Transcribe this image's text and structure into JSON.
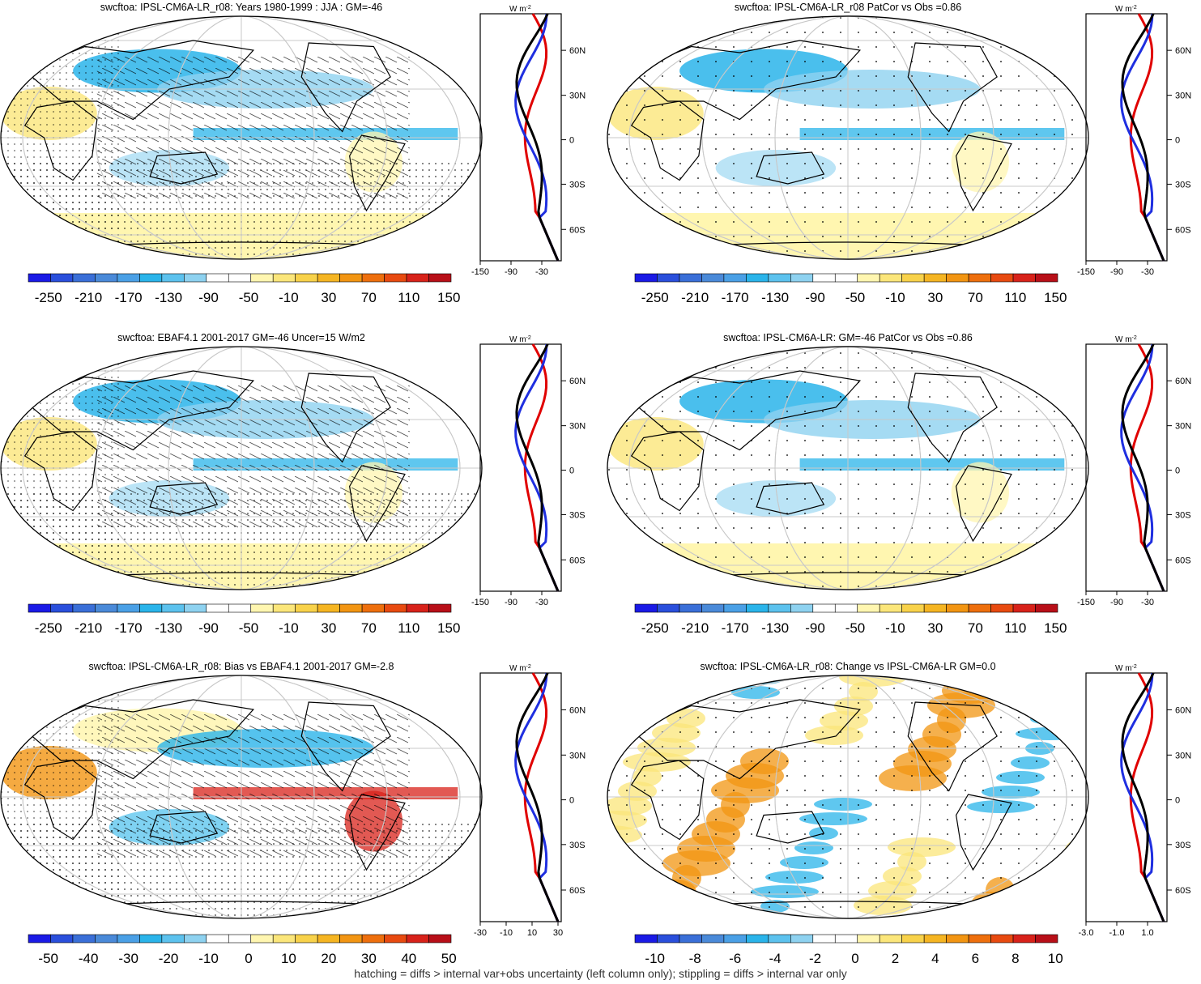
{
  "palettes": {
    "blue_red": [
      "#1a1ae6",
      "#2a4fdc",
      "#3a6fd8",
      "#4a8ad9",
      "#4aa0e6",
      "#2ab4ea",
      "#5cc2ee",
      "#8ed2f0",
      "#ffffff",
      "#ffffff",
      "#fff6b0",
      "#fbe67a",
      "#f8d24a",
      "#f5b522",
      "#f29512",
      "#ee6f0d",
      "#e84a10",
      "#d8221a",
      "#b80f18"
    ]
  },
  "footnote": "hatching = diffs > internal var+obs uncertainty (left column only); stippling = diffs > internal var only",
  "panels": [
    {
      "title": "swcftoa: IPSL-CM6A-LR_r08: Years 1980-1999 : JJA : GM=-46",
      "colorbar_labels": [
        "-250",
        "-210",
        "-170",
        "-130",
        "-90",
        "-50",
        "-10",
        "30",
        "70",
        "110",
        "150"
      ],
      "profile_ticks": [
        "-150",
        "-90",
        "-30"
      ],
      "lat_labels": [
        "60N",
        "30N",
        "0",
        "30S",
        "60S"
      ],
      "unit": "W m",
      "unit_sup": "-2"
    },
    {
      "title": "swcftoa: IPSL-CM6A-LR_r08 PatCor vs Obs =0.86",
      "colorbar_labels": [
        "-250",
        "-210",
        "-170",
        "-130",
        "-90",
        "-50",
        "-10",
        "30",
        "70",
        "110",
        "150"
      ],
      "profile_ticks": [
        "-150",
        "-90",
        "-30"
      ],
      "lat_labels": [
        "60N",
        "30N",
        "0",
        "30S",
        "60S"
      ],
      "unit": "W m",
      "unit_sup": "-2"
    },
    {
      "title": "swcftoa: EBAF4.1 2001-2017 GM=-46 Uncer=15 W/m2",
      "colorbar_labels": [
        "-250",
        "-210",
        "-170",
        "-130",
        "-90",
        "-50",
        "-10",
        "30",
        "70",
        "110",
        "150"
      ],
      "profile_ticks": [
        "-150",
        "-90",
        "-30"
      ],
      "lat_labels": [
        "60N",
        "30N",
        "0",
        "30S",
        "60S"
      ],
      "unit": "W m",
      "unit_sup": "-2"
    },
    {
      "title": "swcftoa: IPSL-CM6A-LR: GM=-46 PatCor vs Obs =0.86",
      "colorbar_labels": [
        "-250",
        "-210",
        "-170",
        "-130",
        "-90",
        "-50",
        "-10",
        "30",
        "70",
        "110",
        "150"
      ],
      "profile_ticks": [
        "-150",
        "-90",
        "-30"
      ],
      "lat_labels": [
        "60N",
        "30N",
        "0",
        "30S",
        "60S"
      ],
      "unit": "W m",
      "unit_sup": "-2"
    },
    {
      "title": "swcftoa: IPSL-CM6A-LR_r08: Bias vs EBAF4.1 2001-2017 GM=-2.8",
      "colorbar_labels": [
        "-50",
        "-40",
        "-30",
        "-20",
        "-10",
        "0",
        "10",
        "20",
        "30",
        "40",
        "50"
      ],
      "profile_ticks": [
        "-30",
        "-10",
        "10",
        "30"
      ],
      "lat_labels": [
        "60N",
        "30N",
        "0",
        "30S",
        "60S"
      ],
      "unit": "W m",
      "unit_sup": "-2"
    },
    {
      "title": "swcftoa: IPSL-CM6A-LR_r08: Change vs IPSL-CM6A-LR GM=0.0",
      "colorbar_labels": [
        "-10",
        "-8",
        "-6",
        "-4",
        "-2",
        "0",
        "2",
        "4",
        "6",
        "8",
        "10"
      ],
      "profile_ticks": [
        "-3.0",
        "-1.0",
        "1.0"
      ],
      "lat_labels": [
        "60N",
        "30N",
        "0",
        "30S",
        "60S"
      ],
      "unit": "W m",
      "unit_sup": "-2"
    }
  ]
}
